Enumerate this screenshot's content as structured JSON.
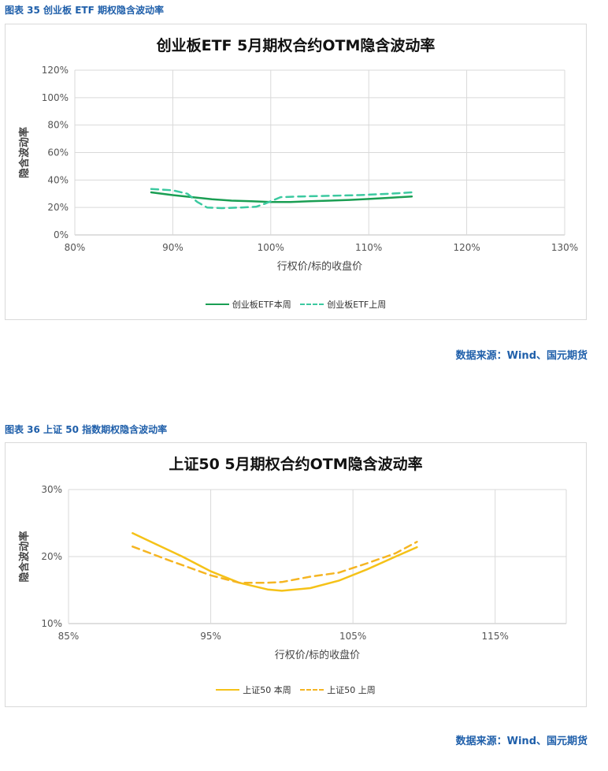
{
  "charts": [
    {
      "caption": "图表 35 创业板 ETF 期权隐含波动率",
      "source": "数据来源：Wind、国元期货"
    },
    {
      "caption": "图表 36 上证 50 指数期权隐含波动率",
      "source": "数据来源：Wind、国元期货"
    }
  ],
  "colors": {
    "green_solid": "#1a9e53",
    "green_dashed": "#3cc9a0",
    "yellow_solid": "#f5c218",
    "yellow_dashed": "#f5b522",
    "caption_blue": "#1f5faa"
  },
  "chart_data": [
    {
      "type": "line",
      "title": "创业板ETF 5月期权合约OTM隐含波动率",
      "xlabel": "行权价/标的收盘价",
      "ylabel": "隐含波动率",
      "xlim": [
        0.8,
        1.3
      ],
      "ylim": [
        0,
        1.2
      ],
      "x_ticks": [
        "80%",
        "90%",
        "100%",
        "110%",
        "120%",
        "130%"
      ],
      "y_ticks": [
        "0%",
        "20%",
        "40%",
        "60%",
        "80%",
        "100%",
        "120%"
      ],
      "grid": true,
      "legend": "bottom",
      "series": [
        {
          "name": "创业板ETF本周",
          "style": "solid",
          "points": [
            [
              0.878,
              0.31
            ],
            [
              0.9,
              0.29
            ],
            [
              0.92,
              0.275
            ],
            [
              0.94,
              0.26
            ],
            [
              0.96,
              0.25
            ],
            [
              0.98,
              0.245
            ],
            [
              1.0,
              0.24
            ],
            [
              1.02,
              0.24
            ],
            [
              1.04,
              0.245
            ],
            [
              1.06,
              0.25
            ],
            [
              1.08,
              0.255
            ],
            [
              1.1,
              0.262
            ],
            [
              1.12,
              0.27
            ],
            [
              1.144,
              0.28
            ]
          ]
        },
        {
          "name": "创业板ETF上周",
          "style": "dashed",
          "points": [
            [
              0.878,
              0.335
            ],
            [
              0.9,
              0.325
            ],
            [
              0.915,
              0.3
            ],
            [
              0.925,
              0.24
            ],
            [
              0.935,
              0.2
            ],
            [
              0.95,
              0.195
            ],
            [
              0.97,
              0.2
            ],
            [
              0.985,
              0.205
            ],
            [
              0.995,
              0.23
            ],
            [
              1.01,
              0.275
            ],
            [
              1.03,
              0.28
            ],
            [
              1.06,
              0.285
            ],
            [
              1.09,
              0.29
            ],
            [
              1.12,
              0.3
            ],
            [
              1.144,
              0.31
            ]
          ]
        }
      ]
    },
    {
      "type": "line",
      "title": "上证50 5月期权合约OTM隐含波动率",
      "xlabel": "行权价/标的收盘价",
      "ylabel": "隐含波动率",
      "xlim": [
        0.85,
        1.2
      ],
      "ylim": [
        0.1,
        0.3
      ],
      "x_ticks": [
        "85%",
        "95%",
        "105%",
        "115%"
      ],
      "y_ticks": [
        "10%",
        "20%",
        "30%"
      ],
      "grid": true,
      "legend": "bottom",
      "series": [
        {
          "name": "上证50 本周",
          "style": "solid",
          "points": [
            [
              0.895,
              0.235
            ],
            [
              0.91,
              0.22
            ],
            [
              0.93,
              0.2
            ],
            [
              0.95,
              0.178
            ],
            [
              0.97,
              0.161
            ],
            [
              0.99,
              0.151
            ],
            [
              1.0,
              0.149
            ],
            [
              1.02,
              0.153
            ],
            [
              1.04,
              0.164
            ],
            [
              1.06,
              0.181
            ],
            [
              1.08,
              0.2
            ],
            [
              1.095,
              0.214
            ]
          ]
        },
        {
          "name": "上证50 上周",
          "style": "dashed",
          "points": [
            [
              0.895,
              0.215
            ],
            [
              0.92,
              0.195
            ],
            [
              0.95,
              0.172
            ],
            [
              0.97,
              0.161
            ],
            [
              0.99,
              0.161
            ],
            [
              1.0,
              0.162
            ],
            [
              1.02,
              0.17
            ],
            [
              1.04,
              0.176
            ],
            [
              1.06,
              0.19
            ],
            [
              1.08,
              0.205
            ],
            [
              1.095,
              0.222
            ]
          ]
        }
      ]
    }
  ]
}
